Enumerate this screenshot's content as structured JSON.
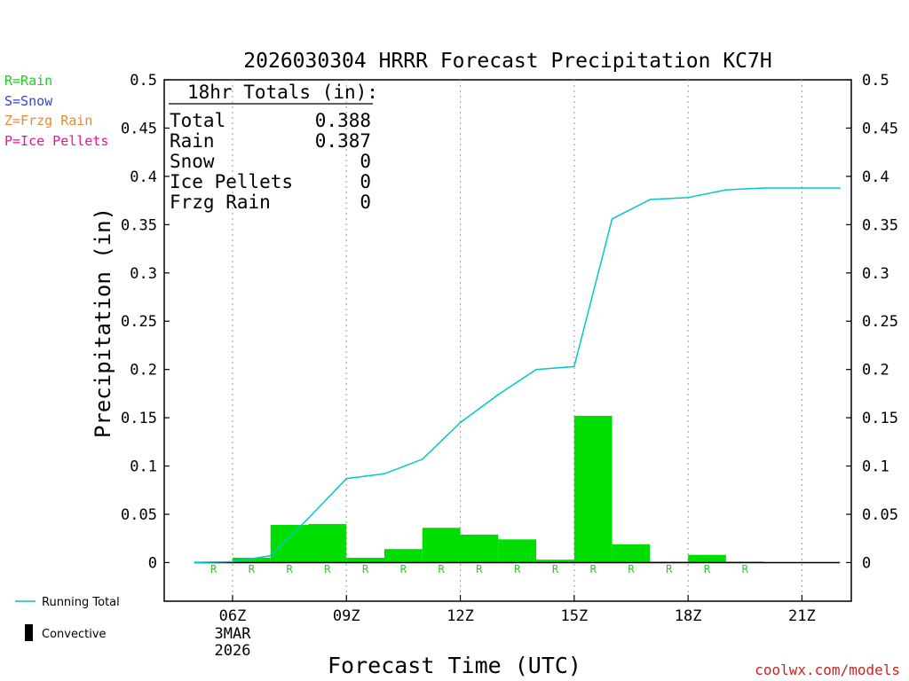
{
  "chart_data": {
    "type": "bar",
    "title": "2026030304 HRRR Forecast Precipitation KC7H",
    "xlabel": "Forecast Time (UTC)",
    "ylabel": "Precipitation (in)",
    "ylim": [
      -0.04,
      0.5
    ],
    "xlim": [
      4.2,
      22.3
    ],
    "y_ticks": [
      {
        "v": 0.5,
        "label": "0.5"
      },
      {
        "v": 0.45,
        "label": "0.45"
      },
      {
        "v": 0.4,
        "label": "0.4"
      },
      {
        "v": 0.35,
        "label": "0.35"
      },
      {
        "v": 0.3,
        "label": "0.3"
      },
      {
        "v": 0.25,
        "label": "0.25"
      },
      {
        "v": 0.2,
        "label": "0.2"
      },
      {
        "v": 0.15,
        "label": "0.15"
      },
      {
        "v": 0.1,
        "label": "0.1"
      },
      {
        "v": 0.05,
        "label": "0.05"
      },
      {
        "v": 0,
        "label": "0"
      }
    ],
    "x_ticks": [
      {
        "hour": 6,
        "label": "06Z"
      },
      {
        "hour": 9,
        "label": "09Z"
      },
      {
        "hour": 12,
        "label": "12Z"
      },
      {
        "hour": 15,
        "label": "15Z"
      },
      {
        "hour": 18,
        "label": "18Z"
      },
      {
        "hour": 21,
        "label": "21Z"
      }
    ],
    "date_label": [
      "3MAR",
      "2026"
    ],
    "grid": "vertical dotted at labeled hours",
    "hourly": {
      "hours": [
        5,
        6,
        7,
        8,
        9,
        10,
        11,
        12,
        13,
        14,
        15,
        16,
        17,
        18,
        19,
        20,
        21,
        22
      ],
      "values": [
        0.0,
        0.001,
        0.005,
        0.039,
        0.04,
        0.005,
        0.014,
        0.036,
        0.029,
        0.024,
        0.003,
        0.152,
        0.019,
        0.001,
        0.008,
        0.001,
        0.0,
        0.0
      ],
      "precip_type": [
        "",
        "R",
        "R",
        "R",
        "R",
        "R",
        "R",
        "R",
        "R",
        "R",
        "R",
        "R",
        "R",
        "R",
        "R",
        "R",
        "",
        ""
      ]
    },
    "running_total": {
      "name": "Running Total",
      "hours": [
        5,
        6,
        7,
        8,
        9,
        10,
        11,
        12,
        13,
        14,
        15,
        16,
        17,
        18,
        19,
        20,
        21,
        22
      ],
      "values": [
        0.0,
        0.001,
        0.007,
        0.046,
        0.087,
        0.092,
        0.107,
        0.145,
        0.174,
        0.2,
        0.203,
        0.356,
        0.376,
        0.378,
        0.386,
        0.388,
        0.388,
        0.388
      ]
    },
    "totals_box": {
      "title": "18hr Totals (in):",
      "rows": [
        {
          "label": "Total",
          "value": "0.388"
        },
        {
          "label": "Rain",
          "value": "0.387"
        },
        {
          "label": "Snow",
          "value": "0"
        },
        {
          "label": "Ice Pellets",
          "value": "0"
        },
        {
          "label": "Frzg Rain",
          "value": "0"
        }
      ]
    },
    "type_legend": [
      {
        "text": "R=Rain",
        "color": "#22cc22"
      },
      {
        "text": "S=Snow",
        "color": "#3344dd"
      },
      {
        "text": "Z=Frzg Rain",
        "color": "#ee8833"
      },
      {
        "text": "P=Ice Pellets",
        "color": "#ee1199"
      }
    ],
    "series_legend": [
      {
        "text": "Running Total",
        "color": "#00c8c8"
      },
      {
        "text": "Convective",
        "color": "#000000"
      }
    ],
    "credit": "coolwx.com/models",
    "colors": {
      "bar": "#00dd00",
      "line": "#00c8c8",
      "rain_marker": "#22cc22",
      "credit": "#cc2222",
      "grid": "#aaaaaa"
    }
  }
}
